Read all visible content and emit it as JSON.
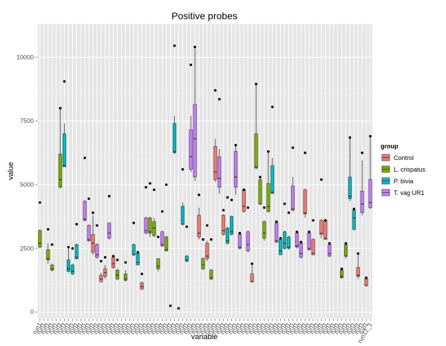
{
  "chart_data": {
    "type": "box",
    "title": "Positive probes",
    "xlabel": "variable",
    "ylabel": "value",
    "ylim": [
      -250,
      11300
    ],
    "yticks": [
      0,
      2500,
      5000,
      7500,
      10000
    ],
    "grid": true,
    "legend": {
      "title": "group",
      "position": "right",
      "entries": [
        {
          "name": "Control",
          "color": "#f8766d"
        },
        {
          "name": "L. crispatus",
          "color": "#7cae00"
        },
        {
          "name": "P. bivia",
          "color": "#00bfc4"
        },
        {
          "name": "T. vag UR1",
          "color": "#c77cff"
        }
      ]
    },
    "series": [
      {
        "name": "Control",
        "boxes": [
          {
            "x": 14,
            "min": 2250,
            "q1": 2350,
            "median": 2700,
            "q3": 3050,
            "max": 3800,
            "outliers": [
              3900
            ]
          },
          {
            "x": 16,
            "min": 1150,
            "q1": 1200,
            "median": 1300,
            "q3": 1450,
            "max": 1550,
            "outliers": [
              2000
            ]
          },
          {
            "x": 17,
            "min": 1300,
            "q1": 1400,
            "median": 1550,
            "q3": 1700,
            "max": 1850,
            "outliers": [
              2150
            ]
          },
          {
            "x": 19,
            "min": 1700,
            "q1": 1750,
            "median": 1900,
            "q3": 2150,
            "max": 2200,
            "outliers": [
              2200
            ]
          },
          {
            "x": 26,
            "min": 880,
            "q1": 900,
            "median": 1000,
            "q3": 1150,
            "max": 1200,
            "outliers": [
              1500
            ]
          },
          {
            "x": 40,
            "min": 2850,
            "q1": 2950,
            "median": 3100,
            "q3": 3800,
            "max": 4100,
            "outliers": [
              4600
            ]
          },
          {
            "x": 42,
            "min": 2000,
            "q1": 2100,
            "median": 2200,
            "q3": 2700,
            "max": 2800,
            "outliers": [
              3400
            ]
          },
          {
            "x": 44,
            "min": 5100,
            "q1": 5200,
            "median": 5500,
            "q3": 6500,
            "max": 6800,
            "outliers": [
              8700
            ]
          },
          {
            "x": 46,
            "min": 3000,
            "q1": 3050,
            "median": 3200,
            "q3": 3800,
            "max": 3850,
            "outliers": [
              4000
            ]
          },
          {
            "x": 51,
            "min": 3900,
            "q1": 3950,
            "median": 4150,
            "q3": 4800,
            "max": 4850,
            "outliers": [
              4800
            ]
          },
          {
            "x": 53,
            "min": 1150,
            "q1": 1200,
            "median": 1200,
            "q3": 1500,
            "max": 1850,
            "outliers": [
              1900
            ]
          },
          {
            "x": 66,
            "min": 3700,
            "q1": 3850,
            "median": 3900,
            "q3": 4800,
            "max": 4850,
            "outliers": [
              6250
            ]
          },
          {
            "x": 68,
            "min": 2250,
            "q1": 2250,
            "median": 2300,
            "q3": 2850,
            "max": 2900,
            "outliers": [
              3600
            ]
          },
          {
            "x": 70,
            "min": 2900,
            "q1": 3050,
            "median": 3100,
            "q3": 3600,
            "max": 3650,
            "outliers": [
              5200
            ]
          },
          {
            "x": 71,
            "min": 2850,
            "q1": 2850,
            "median": 2900,
            "q3": 3600,
            "max": 3650,
            "outliers": [
              3600
            ]
          },
          {
            "x": 79,
            "min": 1300,
            "q1": 1400,
            "median": 1450,
            "q3": 1750,
            "max": 2300,
            "outliers": [
              2300
            ]
          },
          {
            "x": 81,
            "min": 1000,
            "q1": 1050,
            "median": 1050,
            "q3": 1300,
            "max": 1350,
            "outliers": [
              1350
            ]
          }
        ]
      },
      {
        "name": "L. crispatus",
        "boxes": [
          {
            "x": 1,
            "min": 2500,
            "q1": 2550,
            "median": 2700,
            "q3": 3200,
            "max": 3250,
            "outliers": [
              4300
            ]
          },
          {
            "x": 3,
            "min": 1900,
            "q1": 2050,
            "median": 2100,
            "q3": 2450,
            "max": 2700,
            "outliers": [
              3250
            ]
          },
          {
            "x": 4,
            "min": 1600,
            "q1": 1650,
            "median": 1700,
            "q3": 1850,
            "max": 1900,
            "outliers": [
              2650
            ]
          },
          {
            "x": 6,
            "min": 4850,
            "q1": 4900,
            "median": 5200,
            "q3": 6200,
            "max": 8000,
            "outliers": [
              8000
            ]
          },
          {
            "x": 20,
            "min": 1250,
            "q1": 1300,
            "median": 1450,
            "q3": 1650,
            "max": 1700,
            "outliers": [
              2050
            ]
          },
          {
            "x": 22,
            "min": 1200,
            "q1": 1250,
            "median": 1300,
            "q3": 1500,
            "max": 1650,
            "outliers": [
              1950
            ]
          },
          {
            "x": 28,
            "min": 2950,
            "q1": 3100,
            "median": 3150,
            "q3": 3700,
            "max": 3750,
            "outliers": [
              5050
            ]
          },
          {
            "x": 29,
            "min": 2950,
            "q1": 3000,
            "median": 3300,
            "q3": 3550,
            "max": 3700,
            "outliers": [
              4800
            ]
          },
          {
            "x": 30,
            "min": 1600,
            "q1": 1700,
            "median": 1800,
            "q3": 2100,
            "max": 2100,
            "outliers": [
              2950
            ]
          },
          {
            "x": 32,
            "min": 2400,
            "q1": 2400,
            "median": 2450,
            "q3": 2950,
            "max": 3000,
            "outliers": [
              5000
            ]
          },
          {
            "x": 41,
            "min": 1650,
            "q1": 1700,
            "median": 1850,
            "q3": 2100,
            "max": 2150,
            "outliers": [
              2850
            ]
          },
          {
            "x": 43,
            "min": 1250,
            "q1": 1300,
            "median": 1350,
            "q3": 1650,
            "max": 1700,
            "outliers": [
              2850
            ]
          },
          {
            "x": 54,
            "min": 5600,
            "q1": 5650,
            "median": 5700,
            "q3": 7000,
            "max": 8950,
            "outliers": [
              8950
            ]
          },
          {
            "x": 55,
            "min": 4200,
            "q1": 4250,
            "median": 4250,
            "q3": 5200,
            "max": 5300,
            "outliers": [
              5300
            ]
          },
          {
            "x": 56,
            "min": 2800,
            "q1": 2900,
            "median": 3100,
            "q3": 3550,
            "max": 3600,
            "outliers": [
              4100
            ]
          },
          {
            "x": 57,
            "min": 3900,
            "q1": 3950,
            "median": 4150,
            "q3": 5050,
            "max": 6300,
            "outliers": [
              6300
            ]
          },
          {
            "x": 75,
            "min": 1300,
            "q1": 1350,
            "median": 1400,
            "q3": 1650,
            "max": 1700,
            "outliers": [
              1700
            ]
          },
          {
            "x": 76,
            "min": 2100,
            "q1": 2200,
            "median": 2200,
            "q3": 2650,
            "max": 2700,
            "outliers": [
              2700
            ]
          }
        ]
      },
      {
        "name": "P. bivia",
        "boxes": [
          {
            "x": 7,
            "min": 5700,
            "q1": 5700,
            "median": 5750,
            "q3": 7000,
            "max": 7400,
            "outliers": [
              9050
            ]
          },
          {
            "x": 8,
            "min": 1550,
            "q1": 1600,
            "median": 1700,
            "q3": 2050,
            "max": 2550,
            "outliers": [
              2550
            ]
          },
          {
            "x": 9,
            "min": 1450,
            "q1": 1500,
            "median": 1600,
            "q3": 1850,
            "max": 1900,
            "outliers": [
              2500
            ]
          },
          {
            "x": 10,
            "min": 2050,
            "q1": 2100,
            "median": 2150,
            "q3": 2650,
            "max": 2700,
            "outliers": [
              3450
            ]
          },
          {
            "x": 24,
            "min": 2200,
            "q1": 2250,
            "median": 2250,
            "q3": 2650,
            "max": 2700,
            "outliers": [
              3500
            ]
          },
          {
            "x": 25,
            "min": 1850,
            "q1": 1850,
            "median": 1950,
            "q3": 2300,
            "max": 2350,
            "outliers": [
              2350
            ]
          },
          {
            "x": 34,
            "min": 6200,
            "q1": 6250,
            "median": 6300,
            "q3": 7400,
            "max": 7700,
            "outliers": [
              10450
            ]
          },
          {
            "x": 36,
            "min": 3400,
            "q1": 3450,
            "median": 3450,
            "q3": 4150,
            "max": 4300,
            "outliers": [
              5600
            ]
          },
          {
            "x": 37,
            "min": 1950,
            "q1": 2000,
            "median": 2050,
            "q3": 2200,
            "max": 2250,
            "outliers": [
              3350
            ]
          },
          {
            "x": 47,
            "min": 2650,
            "q1": 2700,
            "median": 2800,
            "q3": 3300,
            "max": 3350,
            "outliers": [
              4500
            ]
          },
          {
            "x": 48,
            "min": 3000,
            "q1": 3050,
            "median": 3150,
            "q3": 3750,
            "max": 3800,
            "outliers": [
              4400
            ]
          },
          {
            "x": 58,
            "min": 4650,
            "q1": 4650,
            "median": 4700,
            "q3": 5750,
            "max": 6050,
            "outliers": [
              8050
            ]
          },
          {
            "x": 60,
            "min": 2250,
            "q1": 2250,
            "median": 2400,
            "q3": 2850,
            "max": 2900,
            "outliers": [
              2900
            ]
          },
          {
            "x": 61,
            "min": 2450,
            "q1": 2500,
            "median": 2700,
            "q3": 3150,
            "max": 3200,
            "outliers": [
              4250
            ]
          },
          {
            "x": 62,
            "min": 2450,
            "q1": 2500,
            "median": 2550,
            "q3": 2950,
            "max": 3000,
            "outliers": [
              3900
            ]
          },
          {
            "x": 77,
            "min": 4350,
            "q1": 4450,
            "median": 4550,
            "q3": 5300,
            "max": 6850,
            "outliers": [
              6850
            ]
          },
          {
            "x": 78,
            "min": 3200,
            "q1": 3250,
            "median": 3700,
            "q3": 4000,
            "max": 4050,
            "outliers": [
              4050
            ]
          }
        ]
      },
      {
        "name": "T. vag UR1",
        "boxes": [
          {
            "x": 12,
            "min": 3550,
            "q1": 3600,
            "median": 3650,
            "q3": 4350,
            "max": 4400,
            "outliers": [
              6050
            ]
          },
          {
            "x": 13,
            "min": 2750,
            "q1": 2800,
            "median": 2850,
            "q3": 3400,
            "max": 3450,
            "outliers": [
              4450
            ]
          },
          {
            "x": 15,
            "min": 2100,
            "q1": 2150,
            "median": 2250,
            "q3": 2650,
            "max": 2700,
            "outliers": [
              3400
            ]
          },
          {
            "x": 18,
            "min": 2850,
            "q1": 2900,
            "median": 3100,
            "q3": 3500,
            "max": 3500,
            "outliers": [
              4550
            ]
          },
          {
            "x": 27,
            "min": 3050,
            "q1": 3100,
            "median": 3200,
            "q3": 3700,
            "max": 3750,
            "outliers": [
              4900
            ]
          },
          {
            "x": 31,
            "min": 2550,
            "q1": 2600,
            "median": 2650,
            "q3": 3150,
            "max": 3200,
            "outliers": [
              3950
            ]
          },
          {
            "x": 38,
            "min": 5500,
            "q1": 5600,
            "median": 6100,
            "q3": 7150,
            "max": 7700,
            "outliers": [
              9700
            ]
          },
          {
            "x": 39,
            "min": 5150,
            "q1": 5300,
            "median": 6800,
            "q3": 8150,
            "max": 10400,
            "outliers": [
              10400
            ]
          },
          {
            "x": 45,
            "min": 4650,
            "q1": 4900,
            "median": 5250,
            "q3": 6100,
            "max": 6400,
            "outliers": [
              8350
            ]
          },
          {
            "x": 49,
            "min": 4600,
            "q1": 4900,
            "median": 5300,
            "q3": 6300,
            "max": 6550,
            "outliers": [
              6550
            ]
          },
          {
            "x": 50,
            "min": 2450,
            "q1": 2500,
            "median": 2550,
            "q3": 3050,
            "max": 3100,
            "outliers": [
              3100
            ]
          },
          {
            "x": 52,
            "min": 2350,
            "q1": 2400,
            "median": 2650,
            "q3": 3150,
            "max": 3200,
            "outliers": [
              4100
            ]
          },
          {
            "x": 59,
            "min": 2700,
            "q1": 2750,
            "median": 2800,
            "q3": 3500,
            "max": 3550,
            "outliers": [
              3550
            ]
          },
          {
            "x": 63,
            "min": 3950,
            "q1": 4000,
            "median": 4050,
            "q3": 4950,
            "max": 5300,
            "outliers": [
              6450
            ]
          },
          {
            "x": 64,
            "min": 2500,
            "q1": 2550,
            "median": 2600,
            "q3": 3100,
            "max": 3150,
            "outliers": [
              3150
            ]
          },
          {
            "x": 65,
            "min": 2100,
            "q1": 2150,
            "median": 2300,
            "q3": 2700,
            "max": 2750,
            "outliers": [
              2750
            ]
          },
          {
            "x": 67,
            "min": 2400,
            "q1": 2450,
            "median": 2500,
            "q3": 3100,
            "max": 3150,
            "outliers": [
              3150
            ]
          },
          {
            "x": 72,
            "min": 2150,
            "q1": 2200,
            "median": 2300,
            "q3": 2650,
            "max": 2700,
            "outliers": [
              2700
            ]
          },
          {
            "x": 80,
            "min": 3800,
            "q1": 3900,
            "median": 4250,
            "q3": 4750,
            "max": 5950,
            "outliers": [
              6250
            ]
          },
          {
            "x": 82,
            "min": 4050,
            "q1": 4100,
            "median": 4300,
            "q3": 5200,
            "max": 6900,
            "outliers": [
              6900
            ]
          }
        ]
      }
    ],
    "extra_points": [
      {
        "x": 33,
        "value": 250
      },
      {
        "x": 35,
        "value": 150
      }
    ],
    "x_count": 82,
    "x_tick_labels": [
      "run1",
      "run1",
      "run1",
      "run1",
      "run1",
      "run1",
      "run1",
      "run1",
      "run1",
      "run1",
      "run1",
      "run1",
      "run1",
      "run1",
      "run1",
      "run1",
      "run1",
      "run1",
      "run1",
      "run1",
      "run1",
      "run1",
      "run1",
      "run1",
      "run1",
      "run1",
      "run1",
      "run1",
      "run1",
      "run1",
      "run1",
      "run1",
      "run1",
      "run1",
      "run1",
      "run1",
      "run1",
      "run1",
      "run1",
      "run1",
      "run1",
      "run1",
      "run1",
      "run1",
      "run1",
      "run1",
      "run1",
      "run1",
      "run1",
      "run1",
      "run1",
      "run1",
      "run1",
      "run1",
      "run1",
      "run1",
      "run1",
      "run1",
      "run1",
      "run1",
      "run1",
      "run1",
      "run1",
      "run1",
      "run1",
      "run1",
      "run1",
      "run1",
      "run1",
      "run1",
      "run1",
      "run1",
      "run1",
      "run1",
      "run1",
      "run1",
      "run1",
      "run1",
      "run1",
      "run1",
      "run1",
      "run12_1"
    ]
  }
}
